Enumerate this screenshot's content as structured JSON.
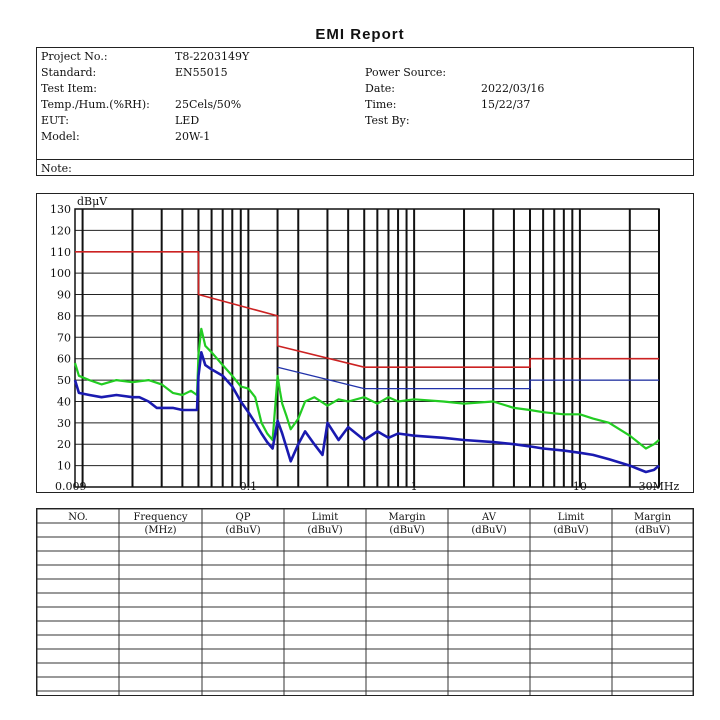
{
  "report": {
    "title": "EMI Report"
  },
  "info": {
    "project_label": "Project No.:",
    "project_value": "T8-2203149Y",
    "standard_label": "Standard:",
    "standard_value": "EN55015",
    "test_item_label": "Test Item:",
    "temp_label": "Temp./Hum.(%RH):",
    "temp_value": "25Cels/50%",
    "eut_label": "EUT:",
    "eut_value": "LED",
    "model_label": "Model:",
    "model_value": "20W-1",
    "power_label": "Power Source:",
    "date_label": "Date:",
    "date_value": "2022/03/16",
    "time_label": "Time:",
    "time_value": "15/22/37",
    "testby_label": "Test By:",
    "note_label": "Note:"
  },
  "chart_data": {
    "type": "line",
    "ylabel": "dBμV",
    "x_scale": "log",
    "xlim": [
      0.009,
      30
    ],
    "ylim": [
      0,
      130
    ],
    "grid": true,
    "yticks": [
      10,
      20,
      30,
      40,
      50,
      60,
      70,
      80,
      90,
      100,
      110,
      120,
      130
    ],
    "xtick_labels": [
      {
        "x": 0.009,
        "label": "0.009"
      },
      {
        "x": 0.1,
        "label": "0.1"
      },
      {
        "x": 1,
        "label": "1"
      },
      {
        "x": 10,
        "label": "10"
      },
      {
        "x": 30,
        "label": "30MHz"
      }
    ],
    "series": [
      {
        "color": "#cc2222",
        "points": [
          [
            0.009,
            110
          ],
          [
            0.05,
            110
          ],
          [
            0.05,
            90
          ],
          [
            0.15,
            80
          ],
          [
            0.15,
            66
          ],
          [
            0.5,
            56
          ],
          [
            5,
            56
          ],
          [
            5,
            60
          ],
          [
            30,
            60
          ]
        ]
      },
      {
        "color": "#2233aa",
        "points": [
          [
            0.15,
            56
          ],
          [
            0.5,
            46
          ],
          [
            5,
            46
          ],
          [
            5,
            50
          ],
          [
            30,
            50
          ]
        ]
      },
      {
        "color": "#22cc22",
        "points": [
          [
            0.009,
            58
          ],
          [
            0.0095,
            52
          ],
          [
            0.011,
            50
          ],
          [
            0.013,
            48
          ],
          [
            0.016,
            50
          ],
          [
            0.02,
            49
          ],
          [
            0.025,
            50
          ],
          [
            0.03,
            48
          ],
          [
            0.035,
            44
          ],
          [
            0.04,
            43
          ],
          [
            0.045,
            45
          ],
          [
            0.049,
            43
          ],
          [
            0.05,
            62
          ],
          [
            0.052,
            74
          ],
          [
            0.055,
            66
          ],
          [
            0.06,
            63
          ],
          [
            0.07,
            57
          ],
          [
            0.08,
            52
          ],
          [
            0.09,
            47
          ],
          [
            0.1,
            46
          ],
          [
            0.11,
            42
          ],
          [
            0.12,
            30
          ],
          [
            0.13,
            25
          ],
          [
            0.14,
            22
          ],
          [
            0.15,
            52
          ],
          [
            0.155,
            45
          ],
          [
            0.16,
            39
          ],
          [
            0.17,
            33
          ],
          [
            0.18,
            27
          ],
          [
            0.2,
            32
          ],
          [
            0.22,
            40
          ],
          [
            0.25,
            42
          ],
          [
            0.3,
            38
          ],
          [
            0.35,
            41
          ],
          [
            0.4,
            40
          ],
          [
            0.5,
            42
          ],
          [
            0.6,
            39
          ],
          [
            0.7,
            42
          ],
          [
            0.8,
            40
          ],
          [
            1,
            41
          ],
          [
            1.5,
            40
          ],
          [
            2,
            39
          ],
          [
            3,
            40
          ],
          [
            4,
            37
          ],
          [
            5,
            36
          ],
          [
            6,
            35
          ],
          [
            8,
            34
          ],
          [
            10,
            34
          ],
          [
            12,
            32
          ],
          [
            15,
            30
          ],
          [
            20,
            24
          ],
          [
            25,
            18
          ],
          [
            28,
            20
          ],
          [
            30,
            22
          ]
        ]
      },
      {
        "color": "#1a1ab0",
        "points": [
          [
            0.009,
            50
          ],
          [
            0.0095,
            44
          ],
          [
            0.011,
            43
          ],
          [
            0.013,
            42
          ],
          [
            0.016,
            43
          ],
          [
            0.02,
            42
          ],
          [
            0.022,
            42
          ],
          [
            0.025,
            40
          ],
          [
            0.028,
            37
          ],
          [
            0.035,
            37
          ],
          [
            0.04,
            36
          ],
          [
            0.049,
            36
          ],
          [
            0.05,
            52
          ],
          [
            0.052,
            63
          ],
          [
            0.055,
            57
          ],
          [
            0.06,
            55
          ],
          [
            0.07,
            52
          ],
          [
            0.08,
            47
          ],
          [
            0.09,
            40
          ],
          [
            0.1,
            35
          ],
          [
            0.11,
            30
          ],
          [
            0.12,
            25
          ],
          [
            0.13,
            21
          ],
          [
            0.14,
            18
          ],
          [
            0.15,
            31
          ],
          [
            0.16,
            25
          ],
          [
            0.18,
            12
          ],
          [
            0.2,
            20
          ],
          [
            0.22,
            26
          ],
          [
            0.25,
            20
          ],
          [
            0.28,
            15
          ],
          [
            0.3,
            30
          ],
          [
            0.35,
            22
          ],
          [
            0.4,
            28
          ],
          [
            0.5,
            22
          ],
          [
            0.6,
            26
          ],
          [
            0.7,
            23
          ],
          [
            0.8,
            25
          ],
          [
            1,
            24
          ],
          [
            1.5,
            23
          ],
          [
            2,
            22
          ],
          [
            3,
            21
          ],
          [
            4,
            20
          ],
          [
            5,
            19
          ],
          [
            6,
            18
          ],
          [
            8,
            17
          ],
          [
            10,
            16
          ],
          [
            12,
            15
          ],
          [
            15,
            13
          ],
          [
            20,
            10
          ],
          [
            25,
            7
          ],
          [
            28,
            8
          ],
          [
            30,
            10
          ]
        ]
      }
    ]
  },
  "table": {
    "headers_top": [
      "NO.",
      "Frequency",
      "QP",
      "Limit",
      "Margin",
      "AV",
      "Limit",
      "Margin"
    ],
    "headers_sub": [
      "",
      "(MHz)",
      "(dBuV)",
      "(dBuV)",
      "(dBuV)",
      "(dBuV)",
      "(dBuV)",
      "(dBuV)"
    ]
  }
}
